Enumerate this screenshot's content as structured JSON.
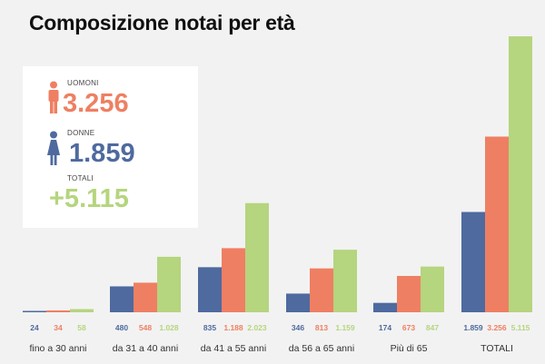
{
  "title": "Composizione notai per età",
  "legend": {
    "men": {
      "label": "UOMONI",
      "value": "3.256",
      "icon": "man-icon"
    },
    "women": {
      "label": "DONNE",
      "value": "1.859",
      "icon": "woman-icon"
    },
    "total": {
      "label": "TOTALI",
      "value": "+5.115"
    }
  },
  "colors": {
    "women": "#4e6a9f",
    "men": "#ef7f62",
    "total": "#b5d57e",
    "background": "#f2f2f2",
    "card": "#ffffff"
  },
  "chart_data": {
    "type": "bar",
    "categories": [
      "fino a 30 anni",
      "da 31 a 40 anni",
      "da 41 a 55 anni",
      "da 56 a 65 anni",
      "Più di 65",
      "TOTALI"
    ],
    "series": [
      {
        "values": [
          24,
          480,
          835,
          346,
          174,
          1859
        ],
        "labels": [
          "24",
          "480",
          "835",
          "346",
          "174",
          "1.859"
        ],
        "color": "#4e6a9f"
      },
      {
        "values": [
          34,
          548,
          1188,
          813,
          673,
          3256
        ],
        "labels": [
          "34",
          "548",
          "1.188",
          "813",
          "673",
          "3.256"
        ],
        "color": "#ef7f62"
      },
      {
        "values": [
          58,
          1028,
          2023,
          1159,
          847,
          5115
        ],
        "labels": [
          "58",
          "1.028",
          "2.023",
          "1.159",
          "847",
          "5.115"
        ],
        "color": "#b5d57e"
      }
    ],
    "grid": false,
    "legend_position": "top-left"
  }
}
